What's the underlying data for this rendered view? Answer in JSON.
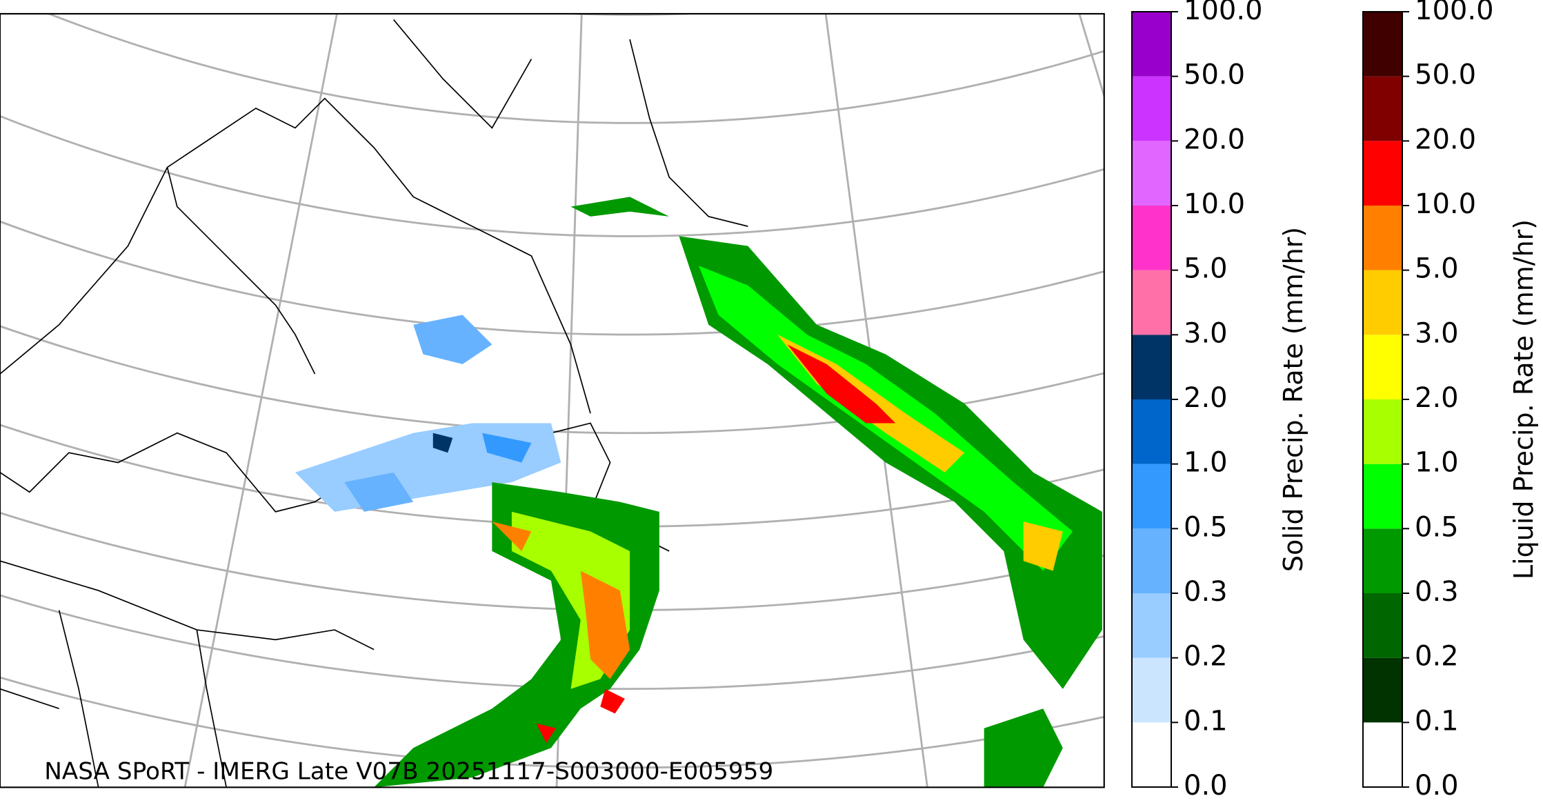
{
  "map": {
    "caption": "NASA SPoRT - IMERG Late V07B 20251117-S003000-E005959",
    "colorbars": [
      {
        "label": "Solid Precip. Rate (mm/hr)",
        "ticks": [
          {
            "value": 0,
            "label": "0.0"
          },
          0.1,
          0.2,
          0.3,
          0.5,
          {
            "value": 1,
            "label": "1.0"
          },
          {
            "value": 2,
            "label": "2.0"
          },
          {
            "value": 3,
            "label": "3.0"
          },
          {
            "value": 5,
            "label": "5.0"
          },
          {
            "value": 10,
            "label": "10.0"
          },
          {
            "value": 20,
            "label": "20.0"
          },
          {
            "value": 50,
            "label": "50.0"
          },
          {
            "value": 100,
            "label": "100.0"
          }
        ],
        "colors": [
          "#ffffff",
          "#cce5ff",
          "#99ccff",
          "#66b2ff",
          "#3399ff",
          "#0066cc",
          "#003366",
          "#ff6fa8",
          "#ff33cc",
          "#e066ff",
          "#cc33ff",
          "#9900cc"
        ]
      },
      {
        "label": "Liquid Precip. Rate (mm/hr)",
        "ticks": [
          {
            "value": 0,
            "label": "0.0"
          },
          0.1,
          0.2,
          0.3,
          0.5,
          {
            "value": 1,
            "label": "1.0"
          },
          {
            "value": 2,
            "label": "2.0"
          },
          {
            "value": 3,
            "label": "3.0"
          },
          {
            "value": 5,
            "label": "5.0"
          },
          {
            "value": 10,
            "label": "10.0"
          },
          {
            "value": 20,
            "label": "20.0"
          },
          {
            "value": 50,
            "label": "50.0"
          },
          {
            "value": 100,
            "label": "100.0"
          }
        ],
        "colors": [
          "#ffffff",
          "#003300",
          "#006600",
          "#009900",
          "#00ff00",
          "#a8ff00",
          "#ffff00",
          "#ffcc00",
          "#ff8000",
          "#ff0000",
          "#800000",
          "#400000"
        ]
      }
    ]
  }
}
